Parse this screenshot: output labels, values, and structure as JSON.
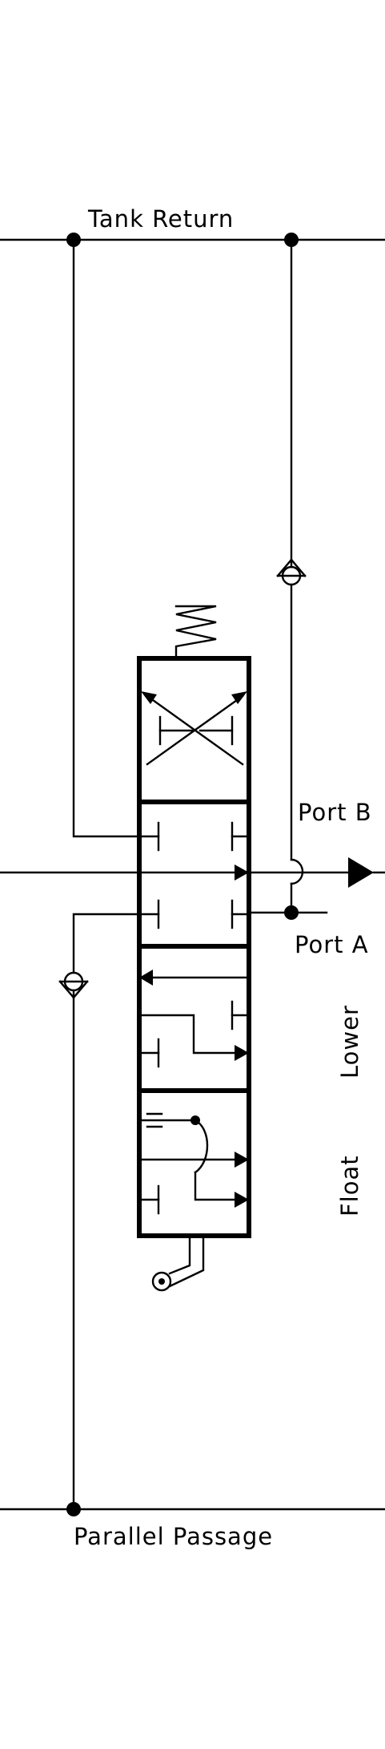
{
  "labels": {
    "tank_return": "Tank Return",
    "port_b": "Port B",
    "port_a": "Port A",
    "lower": "Lower",
    "float": "Float",
    "parallel_passage": "Parallel Passage"
  },
  "colors": {
    "line": "#000000",
    "background": "#ffffff"
  }
}
